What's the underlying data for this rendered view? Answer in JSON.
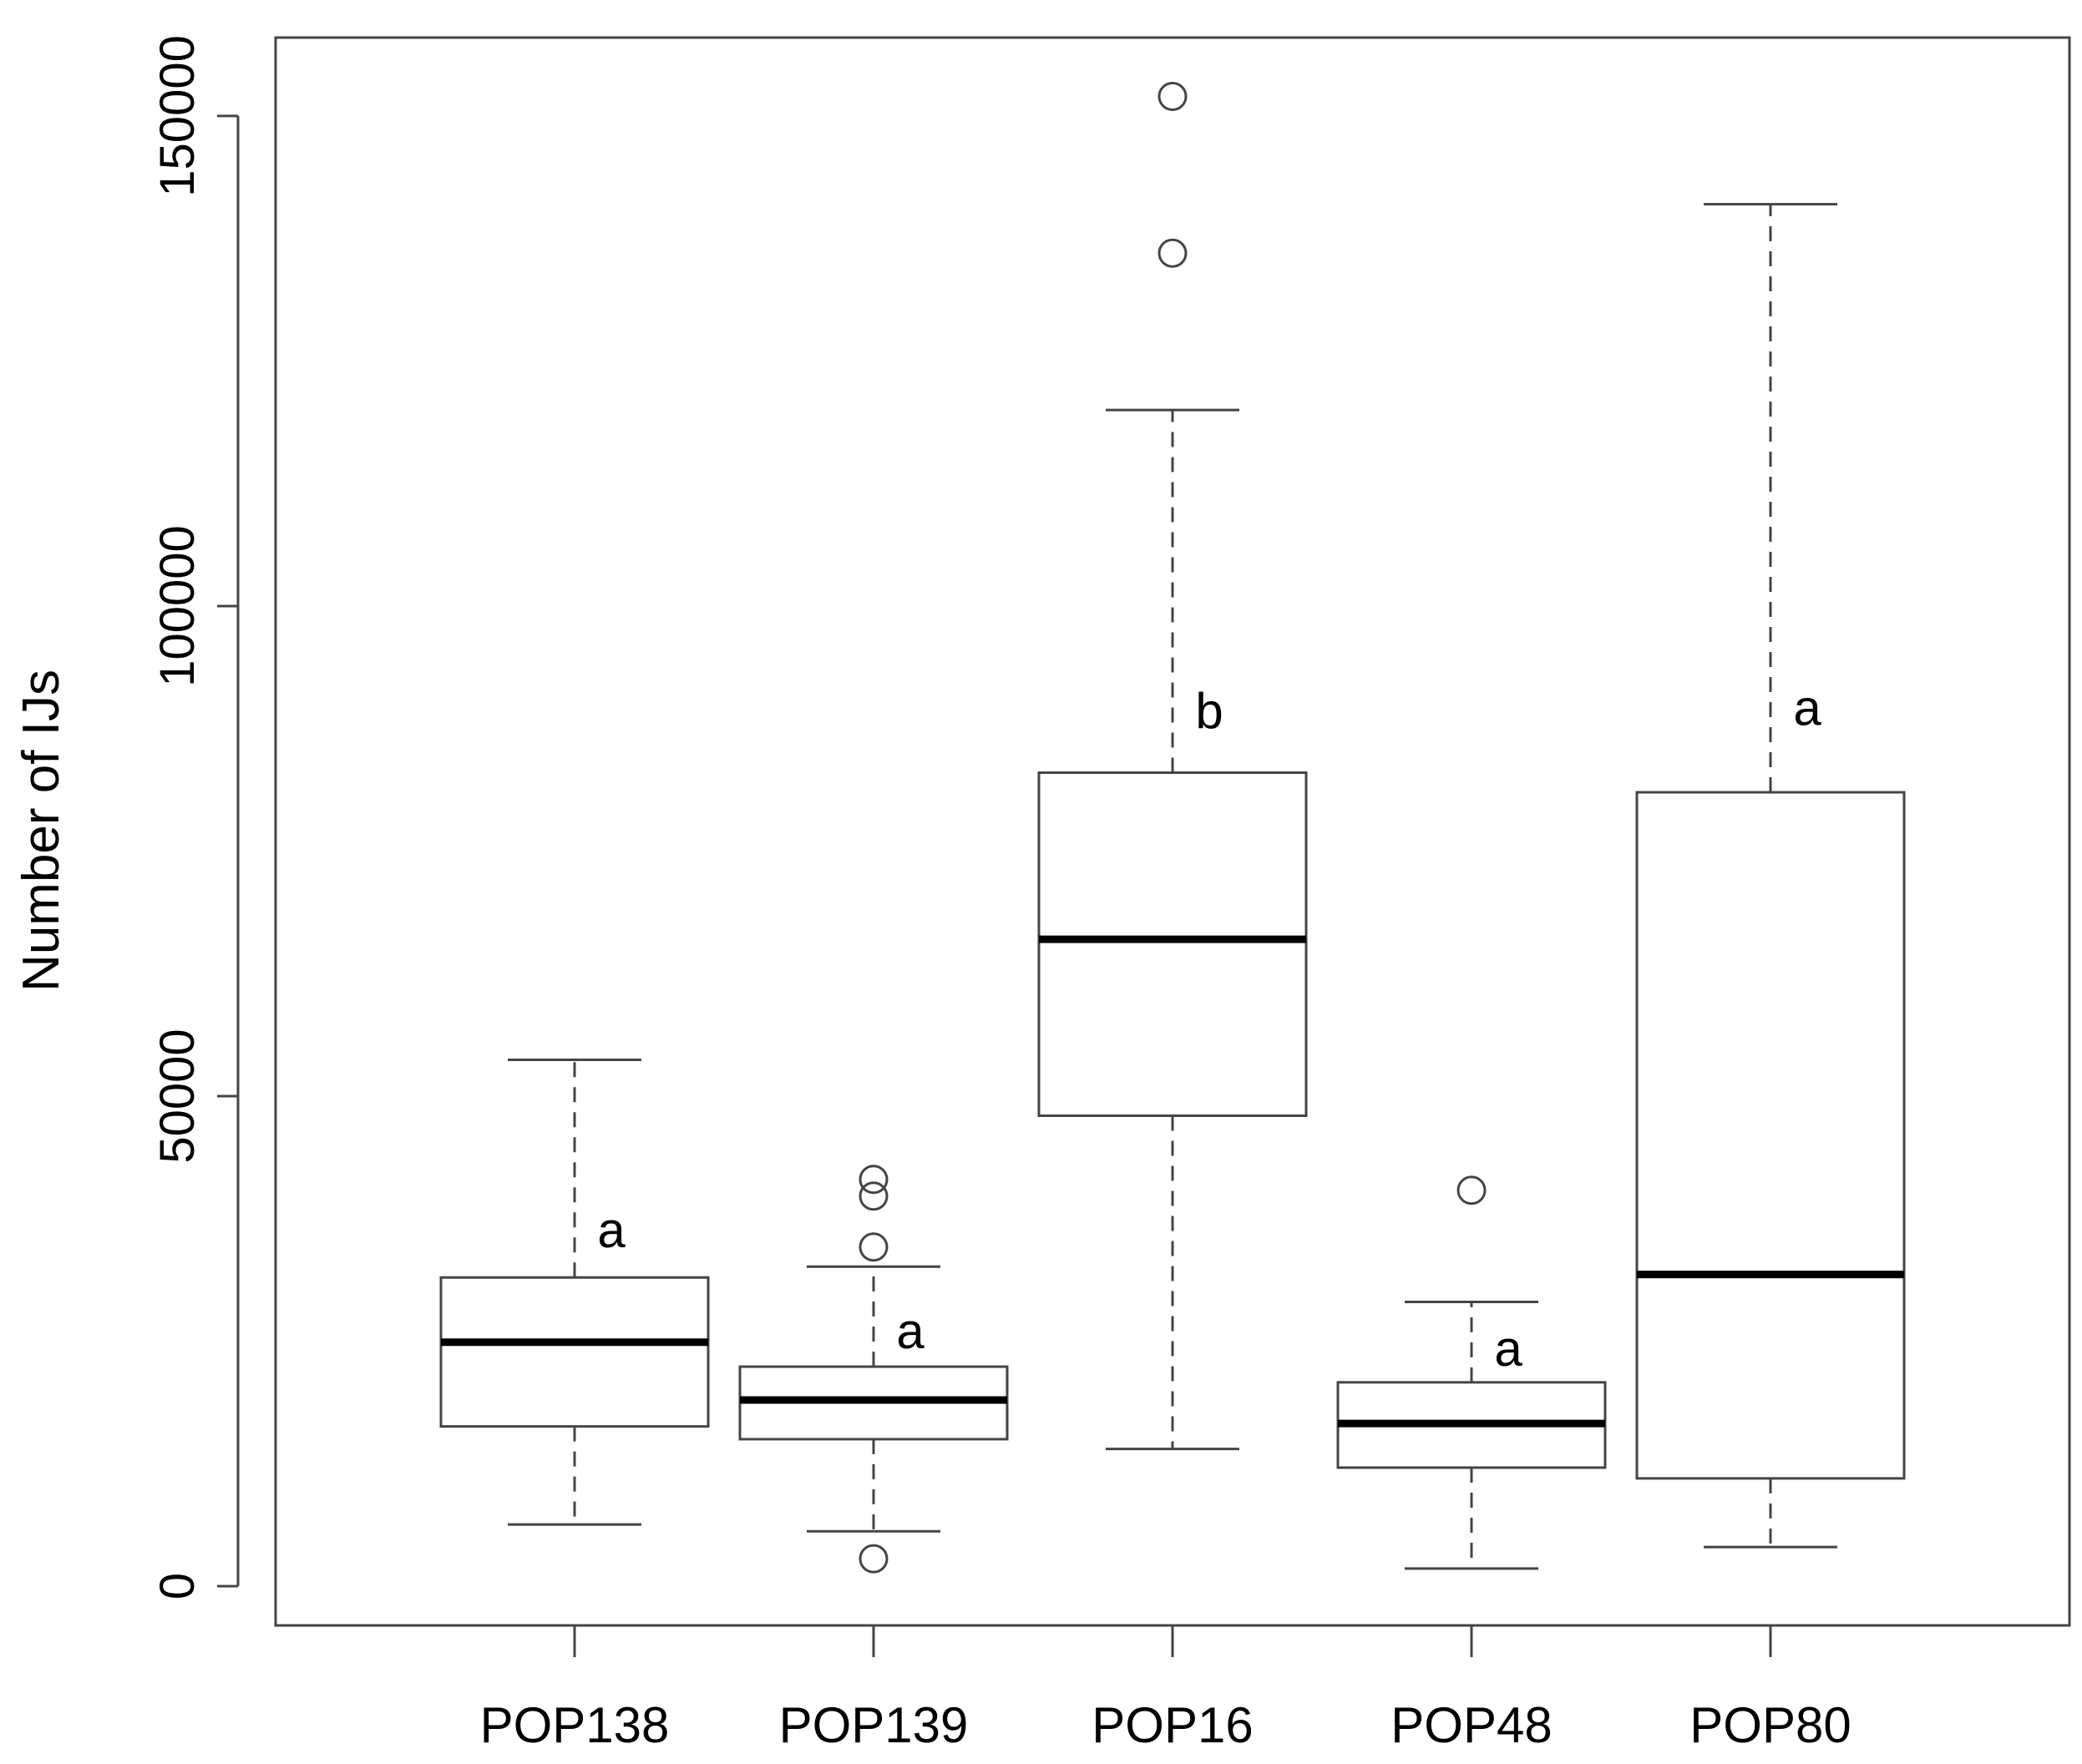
{
  "chart_data": {
    "type": "box",
    "title": "",
    "xlabel": "",
    "ylabel": "Number of IJs",
    "ylim": [
      -4000,
      158000
    ],
    "yticks": [
      0,
      50000,
      100000,
      150000
    ],
    "ytick_labels": [
      "0",
      "50000",
      "100000",
      "150000"
    ],
    "grid": false,
    "categories": [
      "POP138",
      "POP139",
      "POP16",
      "POP48",
      "POP80"
    ],
    "boxes": [
      {
        "name": "POP138",
        "whisker_low": 6300,
        "q1": 16300,
        "median": 24900,
        "q3": 31500,
        "whisker_high": 53700,
        "outliers": [],
        "label": "a"
      },
      {
        "name": "POP139",
        "whisker_low": 5600,
        "q1": 15000,
        "median": 19000,
        "q3": 22400,
        "whisker_high": 32600,
        "outliers": [
          41500,
          39800,
          34600,
          2800
        ],
        "label": "a"
      },
      {
        "name": "POP16",
        "whisker_low": 14000,
        "q1": 48000,
        "median": 66000,
        "q3": 83000,
        "whisker_high": 120000,
        "outliers": [
          152000,
          136000
        ],
        "label": "b"
      },
      {
        "name": "POP48",
        "whisker_low": 1800,
        "q1": 12100,
        "median": 16600,
        "q3": 20800,
        "whisker_high": 29000,
        "outliers": [
          40400
        ],
        "label": "a"
      },
      {
        "name": "POP80",
        "whisker_low": 4000,
        "q1": 11000,
        "median": 31800,
        "q3": 81000,
        "whisker_high": 141000,
        "outliers": [],
        "label": "a"
      }
    ]
  }
}
